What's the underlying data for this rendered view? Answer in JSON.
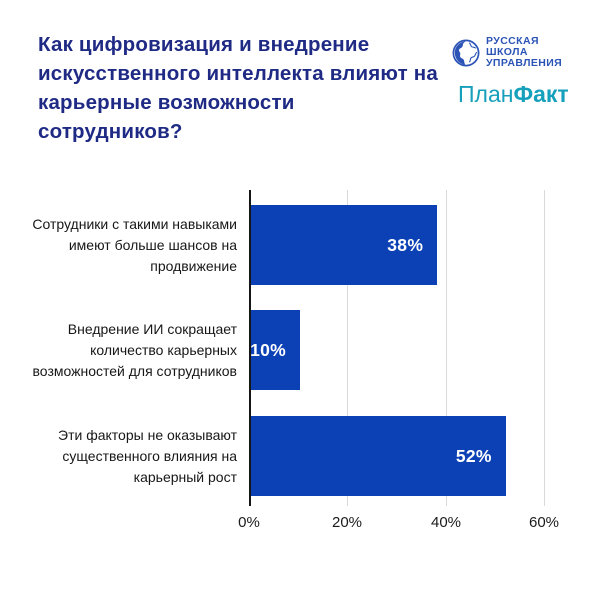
{
  "header": {
    "title": "Как цифровизация и внедрение искусственного интеллекта влияют на карьерные возможности сотрудников?",
    "logos": {
      "rsu": {
        "line1": "РУССКАЯ",
        "line2": "ШКОЛА",
        "line3": "УПРАВЛЕНИЯ",
        "color": "#2B54B6"
      },
      "planfact": {
        "part1": "План",
        "part2": "Факт",
        "color": "#17A0BB"
      }
    }
  },
  "colors": {
    "title_navy": "#1F2A85",
    "bar_blue": "#0C41B5",
    "gridline_gray": "#d9d9d9",
    "axis_black": "#161616",
    "background": "#ffffff"
  },
  "chart_data": {
    "type": "bar",
    "orientation": "horizontal",
    "title": "Как цифровизация и внедрение искусственного интеллекта влияют на карьерные возможности сотрудников?",
    "categories": [
      "Сотрудники с такими навыками имеют больше шансов на продвижение",
      "Внедрение ИИ сокращает количество карьерных возможностей для сотрудников",
      "Эти факторы не оказывают существенного влияния на карьерный рост"
    ],
    "values": [
      38,
      10,
      52
    ],
    "value_labels": [
      "38%",
      "10%",
      "52%"
    ],
    "xlabel": "",
    "ylabel": "",
    "xlim": [
      0,
      60
    ],
    "xticks": [
      0,
      20,
      40,
      60
    ],
    "tick_labels": [
      "0%",
      "20%",
      "40%",
      "60%"
    ],
    "grid": "vertical-gridlines-on",
    "legend": "none",
    "bar_color": "#0C41B5",
    "value_label_color": "#ffffff"
  }
}
